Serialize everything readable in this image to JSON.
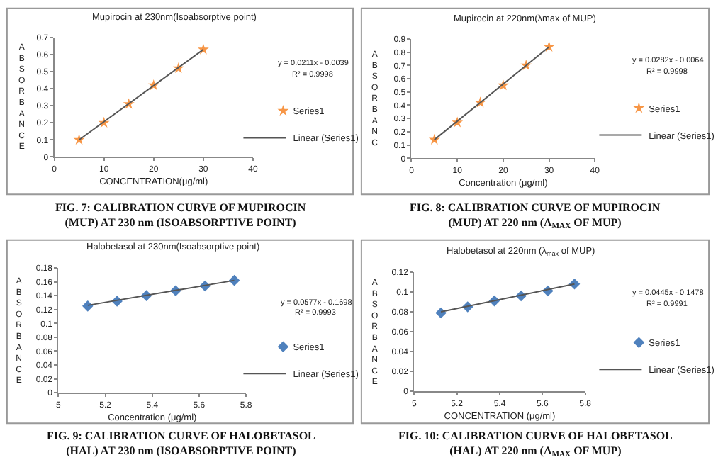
{
  "chart_data": [
    {
      "type": "scatter",
      "title": "Mupirocin at 230nm(Isoabsorptive point)",
      "xlabel": "CONCENTRATION(μg/ml)",
      "ylabel": "ABSORBANCE",
      "xlim": [
        0,
        40
      ],
      "xticks": [
        0,
        10,
        20,
        30,
        40
      ],
      "ylim": [
        0,
        0.7
      ],
      "yticks": [
        0,
        0.1,
        0.2,
        0.3,
        0.4,
        0.5,
        0.6,
        0.7
      ],
      "legend": "right",
      "annotations": [
        "y = 0.0211x - 0.0039",
        "R² = 0.9998",
        "FIG. 7: CALIBRATION CURVE OF MUPIROCIN (MUP) AT 230 nm (ISOABSORPTIVE POINT)"
      ],
      "series": [
        {
          "name": "Series1",
          "marker": "star",
          "color": "#f79646",
          "x": [
            5,
            10,
            15,
            20,
            25,
            30
          ],
          "values": [
            0.1,
            0.2,
            0.31,
            0.42,
            0.52,
            0.63
          ]
        },
        {
          "name": "Linear (Series1)",
          "type": "line",
          "marker": "none",
          "line_style": "solid",
          "color": "#555555",
          "x": [
            5,
            30
          ],
          "values": [
            0.1,
            0.63
          ]
        }
      ]
    },
    {
      "type": "scatter",
      "title": "Mupirocin at 220nm(λmax of MUP)",
      "xlabel": "Concentration (μg/ml)",
      "ylabel": "ABSORBANC",
      "xlim": [
        0,
        40
      ],
      "xticks": [
        0,
        10,
        20,
        30,
        40
      ],
      "ylim": [
        0,
        0.9
      ],
      "yticks": [
        0,
        0.1,
        0.2,
        0.3,
        0.4,
        0.5,
        0.6,
        0.7,
        0.8,
        0.9
      ],
      "legend": "right",
      "annotations": [
        "y = 0.0282x - 0.0064",
        "R² = 0.9998",
        "FIG. 8: CALIBRATION CURVE OF MUPIROCIN (MUP) AT 220 nm (Λ$_{MAX}$ OF MUP)"
      ],
      "series": [
        {
          "name": "Series1",
          "marker": "star",
          "color": "#f79646",
          "x": [
            5,
            10,
            15,
            20,
            25,
            30
          ],
          "values": [
            0.14,
            0.27,
            0.42,
            0.55,
            0.7,
            0.84
          ]
        },
        {
          "name": "Linear (Series1)",
          "type": "line",
          "marker": "none",
          "line_style": "solid",
          "color": "#555555",
          "x": [
            5,
            30
          ],
          "values": [
            0.14,
            0.84
          ]
        }
      ]
    },
    {
      "type": "scatter",
      "title": "Halobetasol at 230nm(Isoabsorptive point)",
      "xlabel": "Concentration (μg/ml)",
      "ylabel": "ABSORBANCE",
      "xlim": [
        5,
        5.8
      ],
      "xticks": [
        5,
        5.2,
        5.4,
        5.6,
        5.8
      ],
      "ylim": [
        0,
        0.18
      ],
      "yticks": [
        0,
        0.02,
        0.04,
        0.06,
        0.08,
        0.1,
        0.12,
        0.14,
        0.16,
        0.18
      ],
      "legend": "right",
      "annotations": [
        "y = 0.0577x - 0.1698",
        "R² = 0.9993",
        "FIG. 9: CALIBRATION CURVE OF HALOBETASOL (HAL) AT 230 nm (ISOABSORPTIVE POINT)"
      ],
      "series": [
        {
          "name": "Series1",
          "marker": "diamond",
          "color": "#4f81bd",
          "x": [
            5.125,
            5.25,
            5.375,
            5.5,
            5.625,
            5.75
          ],
          "values": [
            0.125,
            0.132,
            0.14,
            0.147,
            0.154,
            0.162
          ]
        },
        {
          "name": "Linear (Series1)",
          "type": "line",
          "marker": "none",
          "line_style": "solid",
          "color": "#555555",
          "x": [
            5.125,
            5.75
          ],
          "values": [
            0.126,
            0.162
          ]
        }
      ]
    },
    {
      "type": "scatter",
      "title": "Halobetasol at 220nm (λ$_{max}$ of MUP)",
      "xlabel": "CONCENTRATION (μg/ml)",
      "ylabel": "ABSORBANCE",
      "xlim": [
        5,
        5.8
      ],
      "xticks": [
        5,
        5.2,
        5.4,
        5.6,
        5.8
      ],
      "ylim": [
        0,
        0.12
      ],
      "yticks": [
        0,
        0.02,
        0.04,
        0.06,
        0.08,
        0.1,
        0.12
      ],
      "legend": "right",
      "annotations": [
        "y = 0.0445x - 0.1478",
        "R² = 0.9991",
        "FIG. 10: CALIBRATION CURVE OF HALOBETASOL (HAL) AT 220 nm (Λ$_{MAX}$ OF MUP)"
      ],
      "series": [
        {
          "name": "Series1",
          "marker": "diamond",
          "color": "#4f81bd",
          "x": [
            5.125,
            5.25,
            5.375,
            5.5,
            5.625,
            5.75
          ],
          "values": [
            0.079,
            0.085,
            0.091,
            0.096,
            0.101,
            0.108
          ]
        },
        {
          "name": "Linear (Series1)",
          "type": "line",
          "marker": "none",
          "line_style": "solid",
          "color": "#555555",
          "x": [
            5.125,
            5.75
          ],
          "values": [
            0.08,
            0.108
          ]
        }
      ]
    }
  ]
}
